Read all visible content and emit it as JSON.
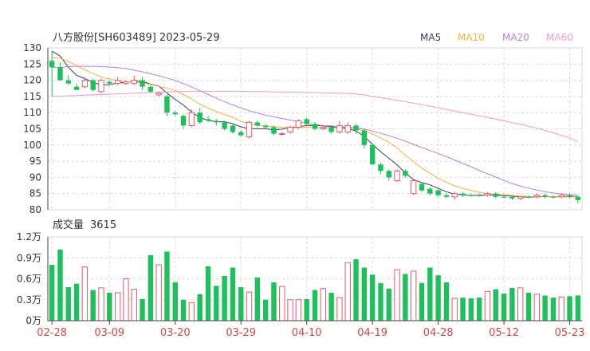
{
  "chart_data": [
    {
      "type": "candlestick",
      "title": "八方股份[SH603489] 2023-05-29",
      "legend": [
        {
          "name": "MA5",
          "color": "#3a3a5a"
        },
        {
          "name": "MA10",
          "color": "#f5b041"
        },
        {
          "name": "MA20",
          "color": "#b784d8"
        },
        {
          "name": "MA60",
          "color": "#f29bc7"
        }
      ],
      "y_ticks": [
        "130",
        "125",
        "120",
        "115",
        "110",
        "105",
        "100",
        "95",
        "90",
        "85",
        "80"
      ],
      "ylim": [
        80,
        130
      ],
      "x_tick_labels": [
        "02-28",
        "03-09",
        "03-20",
        "03-29",
        "04-10",
        "04-19",
        "04-28",
        "05-12",
        "05-23"
      ],
      "x_tick_index": [
        0,
        7,
        15,
        23,
        31,
        39,
        47,
        55,
        63
      ],
      "colors": {
        "up": "#e05a6b",
        "down": "#1fbf5b",
        "grid": "#d8d8d8",
        "axis": "#444444",
        "x_label": "#d14848"
      },
      "candles": [
        {
          "o": 126,
          "h": 129,
          "l": 115,
          "c": 124,
          "up": false
        },
        {
          "o": 124,
          "h": 125.5,
          "l": 120,
          "c": 120,
          "up": false
        },
        {
          "o": 120,
          "h": 121.5,
          "l": 118.5,
          "c": 119,
          "up": false
        },
        {
          "o": 118,
          "h": 119,
          "l": 117,
          "c": 117,
          "up": false
        },
        {
          "o": 118,
          "h": 121,
          "l": 117.5,
          "c": 120,
          "up": true
        },
        {
          "o": 120,
          "h": 120.5,
          "l": 116.5,
          "c": 117,
          "up": false
        },
        {
          "o": 116.5,
          "h": 120.5,
          "l": 116,
          "c": 120,
          "up": true
        },
        {
          "o": 119.5,
          "h": 120,
          "l": 118.5,
          "c": 119,
          "up": false
        },
        {
          "o": 119,
          "h": 121,
          "l": 118.5,
          "c": 120,
          "up": true
        },
        {
          "o": 119,
          "h": 120,
          "l": 118.5,
          "c": 119.5,
          "up": true
        },
        {
          "o": 119,
          "h": 121.5,
          "l": 118.5,
          "c": 120,
          "up": true
        },
        {
          "o": 120,
          "h": 121,
          "l": 117,
          "c": 118,
          "up": false
        },
        {
          "o": 118,
          "h": 118.5,
          "l": 116,
          "c": 116.5,
          "up": false
        },
        {
          "o": 116,
          "h": 116.5,
          "l": 115,
          "c": 115.5,
          "up": true
        },
        {
          "o": 115,
          "h": 115.5,
          "l": 109,
          "c": 110,
          "up": false
        },
        {
          "o": 110,
          "h": 110.5,
          "l": 109,
          "c": 109.5,
          "up": false
        },
        {
          "o": 109,
          "h": 109.5,
          "l": 105,
          "c": 106,
          "up": false
        },
        {
          "o": 106,
          "h": 111,
          "l": 105.5,
          "c": 110,
          "up": true
        },
        {
          "o": 110,
          "h": 111.5,
          "l": 106.5,
          "c": 107,
          "up": false
        },
        {
          "o": 108,
          "h": 109,
          "l": 107,
          "c": 107.5,
          "up": false
        },
        {
          "o": 107.5,
          "h": 108,
          "l": 106,
          "c": 107,
          "up": false
        },
        {
          "o": 107,
          "h": 107.5,
          "l": 104.5,
          "c": 105,
          "up": false
        },
        {
          "o": 106,
          "h": 106.5,
          "l": 103.5,
          "c": 104,
          "up": false
        },
        {
          "o": 104,
          "h": 104.5,
          "l": 102.5,
          "c": 103,
          "up": false
        },
        {
          "o": 102.5,
          "h": 107.5,
          "l": 102,
          "c": 107,
          "up": true
        },
        {
          "o": 107,
          "h": 107.5,
          "l": 105.5,
          "c": 106,
          "up": false
        },
        {
          "o": 106,
          "h": 106.5,
          "l": 105,
          "c": 105.5,
          "up": false
        },
        {
          "o": 105.5,
          "h": 106,
          "l": 103,
          "c": 103.5,
          "up": false
        },
        {
          "o": 103.5,
          "h": 104,
          "l": 103,
          "c": 103.5,
          "up": true
        },
        {
          "o": 104,
          "h": 106,
          "l": 103.5,
          "c": 105.5,
          "up": true
        },
        {
          "o": 105.5,
          "h": 108,
          "l": 105,
          "c": 107.5,
          "up": true
        },
        {
          "o": 108,
          "h": 108.5,
          "l": 106,
          "c": 106.5,
          "up": false
        },
        {
          "o": 106.5,
          "h": 107,
          "l": 104.5,
          "c": 105,
          "up": false
        },
        {
          "o": 105,
          "h": 106,
          "l": 104.5,
          "c": 105.5,
          "up": true
        },
        {
          "o": 105.5,
          "h": 106,
          "l": 103.5,
          "c": 104,
          "up": false
        },
        {
          "o": 104,
          "h": 107.5,
          "l": 103.5,
          "c": 106,
          "up": true
        },
        {
          "o": 104,
          "h": 107,
          "l": 103.5,
          "c": 106,
          "up": true
        },
        {
          "o": 106,
          "h": 106.5,
          "l": 103.5,
          "c": 104.5,
          "up": false
        },
        {
          "o": 104.5,
          "h": 105,
          "l": 99,
          "c": 100,
          "up": false
        },
        {
          "o": 100,
          "h": 100.5,
          "l": 94,
          "c": 94,
          "up": false
        },
        {
          "o": 94,
          "h": 94.5,
          "l": 91,
          "c": 92,
          "up": false
        },
        {
          "o": 92,
          "h": 92.5,
          "l": 89,
          "c": 90,
          "up": false
        },
        {
          "o": 89,
          "h": 92.5,
          "l": 88.5,
          "c": 92,
          "up": true
        },
        {
          "o": 92,
          "h": 92.5,
          "l": 90,
          "c": 90.5,
          "up": false
        },
        {
          "o": 85,
          "h": 89.5,
          "l": 84.5,
          "c": 89,
          "up": true
        },
        {
          "o": 88,
          "h": 88.5,
          "l": 85.5,
          "c": 86,
          "up": false
        },
        {
          "o": 86.5,
          "h": 87,
          "l": 84.5,
          "c": 85,
          "up": false
        },
        {
          "o": 86,
          "h": 86.5,
          "l": 84,
          "c": 84.5,
          "up": false
        },
        {
          "o": 84.5,
          "h": 85,
          "l": 83.5,
          "c": 84,
          "up": false
        },
        {
          "o": 84,
          "h": 85.5,
          "l": 83,
          "c": 85,
          "up": true
        },
        {
          "o": 85,
          "h": 85.5,
          "l": 84,
          "c": 84.5,
          "up": false
        },
        {
          "o": 84.5,
          "h": 85,
          "l": 84,
          "c": 84.5,
          "up": false
        },
        {
          "o": 84.5,
          "h": 85,
          "l": 84,
          "c": 84.5,
          "up": false
        },
        {
          "o": 84.5,
          "h": 85.5,
          "l": 84,
          "c": 85,
          "up": true
        },
        {
          "o": 85,
          "h": 85.5,
          "l": 83.5,
          "c": 84,
          "up": false
        },
        {
          "o": 84,
          "h": 84.5,
          "l": 83.5,
          "c": 84,
          "up": false
        },
        {
          "o": 84,
          "h": 84.5,
          "l": 83,
          "c": 83.5,
          "up": false
        },
        {
          "o": 83.5,
          "h": 84,
          "l": 83,
          "c": 84,
          "up": true
        },
        {
          "o": 84,
          "h": 84.5,
          "l": 83.5,
          "c": 84,
          "up": false
        },
        {
          "o": 84,
          "h": 85,
          "l": 83.5,
          "c": 84.5,
          "up": true
        },
        {
          "o": 84.5,
          "h": 85,
          "l": 83.5,
          "c": 84,
          "up": false
        },
        {
          "o": 84,
          "h": 84.5,
          "l": 83.5,
          "c": 84,
          "up": false
        },
        {
          "o": 84,
          "h": 85,
          "l": 83.5,
          "c": 84.5,
          "up": true
        },
        {
          "o": 84.5,
          "h": 85,
          "l": 83.5,
          "c": 84,
          "up": false
        },
        {
          "o": 84,
          "h": 84.5,
          "l": 82,
          "c": 83,
          "up": false
        }
      ],
      "ma5": [
        129,
        127.5,
        124,
        121.5,
        120.5,
        119.3,
        118.6,
        118.6,
        119.2,
        119.3,
        119.6,
        119.7,
        118.8,
        118.2,
        116,
        114.1,
        112.3,
        110.2,
        108.5,
        107.6,
        107.2,
        107.2,
        106.6,
        105.6,
        105.1,
        105,
        105,
        104.7,
        104.9,
        105.4,
        105.7,
        106,
        106,
        105.9,
        105.7,
        105.3,
        105.1,
        104.3,
        102.7,
        100.2,
        97.9,
        95.9,
        93.9,
        91.4,
        89.3,
        88.4,
        87.7,
        86.6,
        85.6,
        84.8,
        84.6,
        84.4,
        84.5,
        84.6,
        84.5,
        84.4,
        84.2,
        84,
        83.9,
        84,
        84.1,
        84,
        84.1,
        84.2,
        84
      ],
      "ma10": [
        127,
        126.8,
        125.8,
        124.5,
        123.2,
        122.1,
        121,
        120.4,
        119.9,
        119.4,
        119.4,
        119.2,
        118.7,
        118.1,
        117.6,
        116.9,
        115.6,
        114.2,
        112.6,
        111.4,
        110.3,
        109.4,
        108.6,
        107.3,
        106.6,
        106.1,
        105.8,
        105.7,
        105.5,
        105.3,
        105.4,
        105.5,
        105.4,
        105.3,
        105.3,
        105.4,
        105.4,
        104.9,
        104.5,
        103.4,
        102.2,
        100.8,
        99.1,
        96.8,
        94.9,
        92.9,
        91.3,
        89.7,
        88.5,
        87.4,
        86.6,
        86,
        85.4,
        85,
        84.8,
        84.6,
        84.4,
        84.2,
        84.1,
        84,
        84,
        84,
        84,
        84,
        84
      ],
      "ma20": [
        124,
        124,
        124.2,
        124.3,
        124.3,
        124.3,
        124.2,
        124.1,
        123.9,
        123.6,
        123.1,
        122.6,
        122,
        121.4,
        120.7,
        119.9,
        119,
        117.9,
        116.8,
        115.6,
        114.5,
        113.4,
        112.4,
        111.4,
        110.6,
        109.9,
        109.2,
        108.7,
        108.2,
        107.7,
        107.2,
        106.7,
        106.3,
        106,
        105.9,
        105.7,
        105.6,
        105.3,
        104.9,
        104.3,
        103.6,
        102.9,
        102.1,
        101.2,
        100.2,
        99.2,
        98.3,
        97.4,
        96.4,
        95.4,
        94.3,
        93.3,
        92.2,
        91.1,
        90.1,
        89.1,
        88.1,
        87.3,
        86.7,
        86.1,
        85.6,
        85.2,
        84.9,
        84.6,
        84.5
      ],
      "ma60": [
        115,
        115.1,
        115.2,
        115.3,
        115.4,
        115.5,
        115.6,
        115.7,
        115.8,
        115.9,
        116,
        116.1,
        116.2,
        116.3,
        116.4,
        116.5,
        116.5,
        116.6,
        116.6,
        116.6,
        116.6,
        116.6,
        116.6,
        116.6,
        116.5,
        116.5,
        116.5,
        116.4,
        116.4,
        116.3,
        116.3,
        116.2,
        116.2,
        116.1,
        116,
        116,
        115.9,
        115.8,
        115.5,
        115,
        114.6,
        114.2,
        113.8,
        113.4,
        112.9,
        112.5,
        112,
        111.5,
        111,
        110.5,
        110,
        109.5,
        109,
        108.5,
        108,
        107.5,
        106.9,
        106.4,
        105.8,
        105.2,
        104.5,
        103.8,
        103,
        102.2,
        101
      ],
      "volume": {
        "title_label": "成交量",
        "value_label": "3615",
        "y_ticks": [
          "1.2万",
          "0.9万",
          "0.6万",
          "0.3万",
          "0万"
        ],
        "ylim": [
          0,
          12000
        ],
        "values": [
          8000,
          10200,
          4800,
          5300,
          7700,
          4400,
          4700,
          4000,
          4000,
          6000,
          4500,
          3100,
          9400,
          8000,
          9900,
          5500,
          3000,
          2600,
          3800,
          7800,
          5000,
          6400,
          7600,
          4800,
          4100,
          6200,
          3000,
          5500,
          4900,
          3000,
          3000,
          3100,
          4400,
          4600,
          4000,
          3300,
          8300,
          8800,
          7600,
          6600,
          5400,
          4600,
          7300,
          6700,
          7100,
          5400,
          7600,
          6500,
          5500,
          3200,
          3300,
          3200,
          3300,
          4200,
          4500,
          3900,
          4700,
          4700,
          4000,
          3800,
          3600,
          3300,
          3400,
          3500,
          3615
        ]
      }
    }
  ]
}
